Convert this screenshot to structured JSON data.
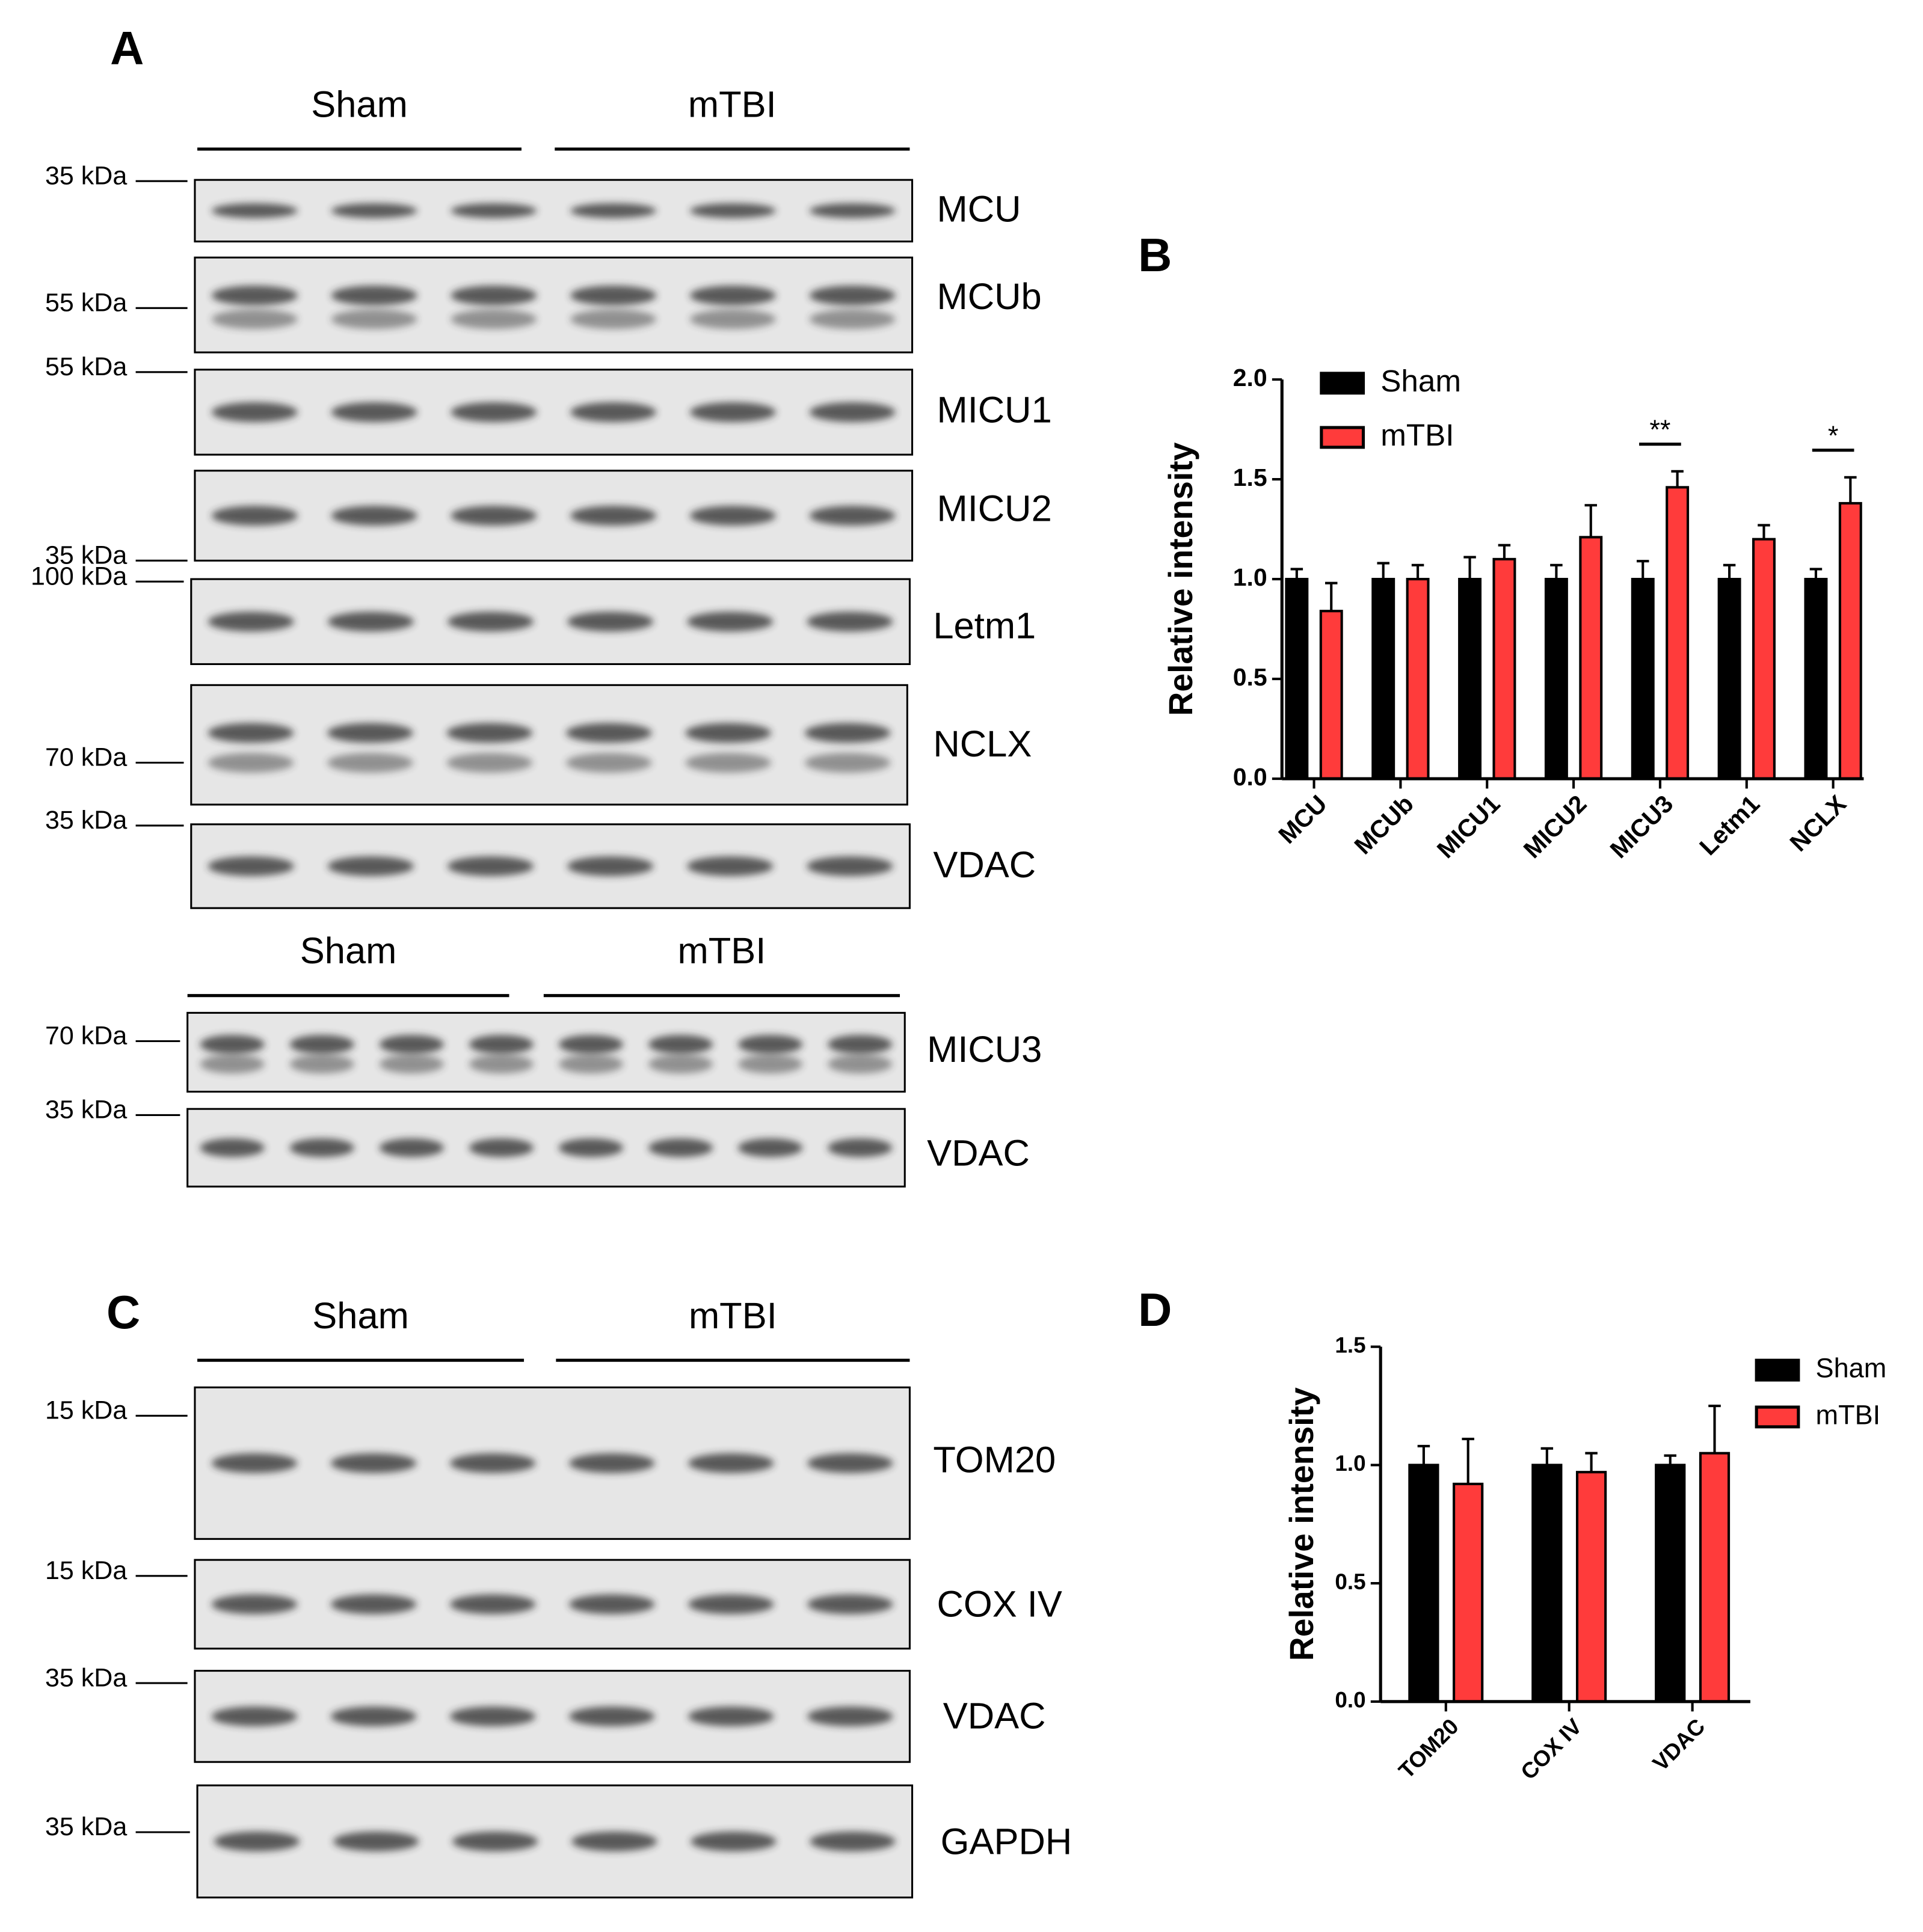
{
  "panel_labels": [
    "A",
    "B",
    "C",
    "D"
  ],
  "blots": [
    {
      "groups": [
        "Sham",
        "mTBI"
      ],
      "rows": [
        {
          "label": "MCU",
          "marker": "35 kDa"
        },
        {
          "label": "MCUb",
          "marker": "55 kDa"
        },
        {
          "label": "MICU1",
          "marker": "55 kDa"
        },
        {
          "label": "MICU2",
          "marker": "35 kDa"
        },
        {
          "label": "Letm1",
          "marker": "100 kDa"
        },
        {
          "label": "NCLX",
          "marker": "70 kDa"
        },
        {
          "label": "VDAC",
          "marker": "35 kDa"
        }
      ]
    },
    {
      "groups": [
        "Sham",
        "mTBI"
      ],
      "rows": [
        {
          "label": "MICU3",
          "marker": "70 kDa"
        },
        {
          "label": "VDAC",
          "marker": "35 kDa"
        }
      ]
    },
    {
      "groups": [
        "Sham",
        "mTBI"
      ],
      "rows": [
        {
          "label": "TOM20",
          "marker": "15 kDa"
        },
        {
          "label": "COX IV",
          "marker": "15 kDa"
        },
        {
          "label": "VDAC",
          "marker": "35 kDa"
        },
        {
          "label": "GAPDH",
          "marker": "35 kDa"
        }
      ]
    }
  ],
  "chart_data": [
    {
      "type": "bar",
      "y_label": "Relative intensity",
      "categories": [
        "MCU",
        "MCUb",
        "MICU1",
        "MICU2",
        "MICU3",
        "Letm1",
        "NCLX"
      ],
      "series": [
        {
          "name": "Sham",
          "color": "#000000",
          "values": [
            1.0,
            1.0,
            1.0,
            1.0,
            1.0,
            1.0,
            1.0
          ],
          "errors": [
            0.05,
            0.08,
            0.11,
            0.07,
            0.09,
            0.07,
            0.05
          ]
        },
        {
          "name": "mTBI",
          "color": "#ff3b3b",
          "values": [
            0.84,
            1.0,
            1.1,
            1.21,
            1.46,
            1.2,
            1.38
          ],
          "errors": [
            0.14,
            0.07,
            0.07,
            0.16,
            0.08,
            0.07,
            0.13
          ]
        }
      ],
      "ylim": [
        0,
        2
      ],
      "yticks": [
        {
          "value": 0,
          "label": "0.0"
        },
        0.5,
        {
          "value": 1,
          "label": "1.0"
        },
        1.5,
        {
          "value": 2,
          "label": "2.0"
        }
      ],
      "annotations": [
        {
          "text": "**",
          "category": "MICU3"
        },
        {
          "text": "*",
          "category": "NCLX"
        }
      ],
      "legend": "top-left"
    },
    {
      "type": "bar",
      "y_label": "Relative intensity",
      "categories": [
        "TOM20",
        "COX IV",
        "VDAC"
      ],
      "series": [
        {
          "name": "Sham",
          "color": "#000000",
          "values": [
            1.0,
            1.0,
            1.0
          ],
          "errors": [
            0.08,
            0.07,
            0.04
          ]
        },
        {
          "name": "mTBI",
          "color": "#ff3b3b",
          "values": [
            0.92,
            0.97,
            1.05
          ],
          "errors": [
            0.19,
            0.08,
            0.2
          ]
        }
      ],
      "ylim": [
        0,
        1.5
      ],
      "yticks": [
        {
          "value": 0,
          "label": "0.0"
        },
        0.5,
        {
          "value": 1,
          "label": "1.0"
        },
        1.5
      ],
      "legend": "right"
    }
  ]
}
